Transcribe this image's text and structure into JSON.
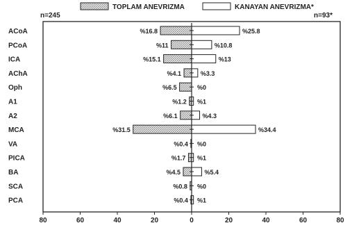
{
  "chart_data": {
    "type": "bar",
    "orientation": "horizontal-diverging",
    "title": "",
    "legend": {
      "placement": "top",
      "entries": [
        "TOPLAM ANEVRIZMA",
        "KANAYAN ANEVRIZMA*"
      ]
    },
    "left_count": "n=245",
    "right_count": "n=93*",
    "categories": [
      "ACoA",
      "PCoA",
      "ICA",
      "AChA",
      "Oph",
      "A1",
      "A2",
      "MCA",
      "VA",
      "PICA",
      "BA",
      "SCA",
      "PCA"
    ],
    "series": [
      {
        "name": "TOPLAM ANEVRIZMA",
        "direction": "left",
        "fill": "hatched-gray",
        "values": [
          16.8,
          11,
          15.1,
          4.1,
          6.5,
          1.2,
          6.1,
          31.5,
          0.4,
          1.7,
          4.5,
          0.8,
          0.4
        ],
        "labels": [
          "%16.8",
          "%11",
          "%15.1",
          "%4.1",
          "%6.5",
          "%1.2",
          "%6.1",
          "%31.5",
          "%0.4",
          "%1.7",
          "%4.5",
          "%0.8",
          "%0.4"
        ]
      },
      {
        "name": "KANAYAN ANEVRIZMA*",
        "direction": "right",
        "fill": "white",
        "values": [
          25.8,
          10.8,
          13,
          3.3,
          0,
          1,
          4.3,
          34.4,
          0,
          1,
          5.4,
          0,
          1
        ],
        "labels": [
          "%25.8",
          "%10.8",
          "%13",
          "%3.3",
          "%0",
          "%1",
          "%4.3",
          "%34.4",
          "%0",
          "%1",
          "%5.4",
          "%0",
          "%1"
        ]
      }
    ],
    "x_ticks": [
      "80",
      "60",
      "40",
      "20",
      "0",
      "20",
      "40",
      "60",
      "80"
    ],
    "xlim": [
      -80,
      80
    ],
    "grid": false
  }
}
